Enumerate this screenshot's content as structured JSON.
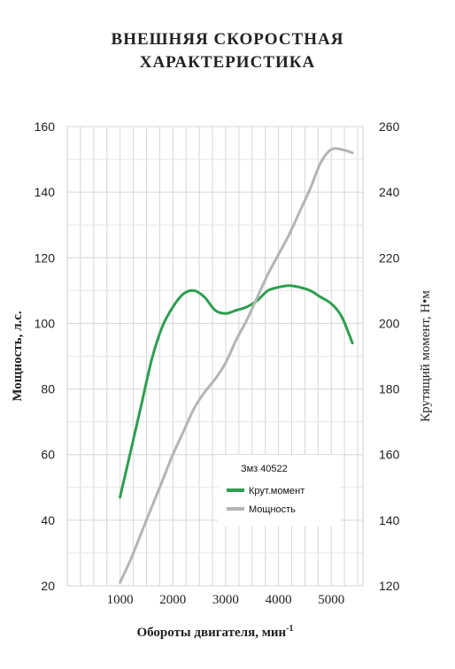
{
  "title_line1": "ВНЕШНЯЯ СКОРОСТНАЯ",
  "title_line2": "ХАРАКТЕРИСТИКА",
  "chart_data": {
    "type": "line",
    "title": "ВНЕШНЯЯ СКОРОСТНАЯ ХАРАКТЕРИСТИКА",
    "xlabel": "Обороты двигателя, мин",
    "xlabel_sup": "-1",
    "ylabel_left": "Мощность, л.с.",
    "ylabel_right": "Крутящий момент, Н•м",
    "xlim": [
      0,
      5600
    ],
    "ylim_left": [
      20,
      160
    ],
    "ylim_right": [
      120,
      260
    ],
    "x_ticks": [
      1000,
      2000,
      3000,
      4000,
      5000
    ],
    "x_tick_labels": [
      "1000",
      "2000",
      "3000",
      "4000",
      "5000"
    ],
    "y_left_ticks": [
      20,
      40,
      60,
      80,
      100,
      120,
      140,
      160
    ],
    "y_right_ticks": [
      120,
      140,
      160,
      180,
      200,
      220,
      240,
      260
    ],
    "grid": true,
    "legend_title": "Змз 40522",
    "legend_position": "lower-right",
    "series": [
      {
        "name": "Крут.момент",
        "axis": "right",
        "color": "#2e9e4f",
        "x": [
          1000,
          1200,
          1400,
          1600,
          1800,
          2000,
          2200,
          2400,
          2600,
          2800,
          3000,
          3200,
          3400,
          3600,
          3800,
          4000,
          4200,
          4400,
          4600,
          4800,
          5000,
          5200,
          5400
        ],
        "y": [
          147,
          161,
          175,
          189,
          199,
          205,
          209,
          210,
          208,
          204,
          203,
          204,
          205,
          207,
          210,
          211,
          211.5,
          211,
          210,
          208,
          206,
          202,
          194
        ]
      },
      {
        "name": "Мощность",
        "axis": "left",
        "color": "#b4b4b4",
        "x": [
          1000,
          1200,
          1400,
          1600,
          1800,
          2000,
          2200,
          2400,
          2600,
          2800,
          3000,
          3200,
          3400,
          3600,
          3800,
          4000,
          4200,
          4400,
          4600,
          4800,
          5000,
          5200,
          5400
        ],
        "y": [
          21,
          28,
          36,
          44,
          52,
          60,
          67,
          74,
          79,
          83,
          88,
          95,
          101,
          108,
          115,
          121,
          127,
          134,
          141,
          149,
          153,
          153,
          152
        ]
      }
    ]
  }
}
